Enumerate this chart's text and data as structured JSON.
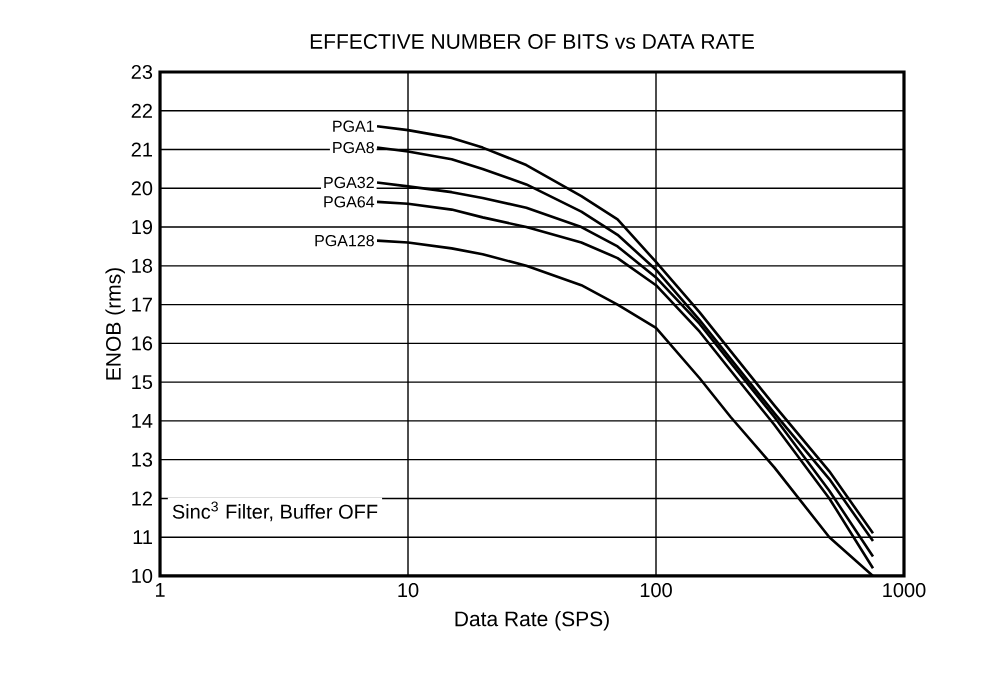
{
  "chart_data": {
    "type": "line",
    "title": "EFFECTIVE NUMBER OF BITS vs DATA RATE",
    "xlabel": "Data Rate (SPS)",
    "ylabel": "ENOB (rms)",
    "log": "x",
    "xlim": [
      1,
      1000
    ],
    "xticks": [
      1,
      10,
      100,
      1000
    ],
    "ylim": [
      10,
      23
    ],
    "yticks": [
      10,
      11,
      12,
      13,
      14,
      15,
      16,
      17,
      18,
      19,
      20,
      21,
      22,
      23
    ],
    "grid": true,
    "legend": false,
    "marker": "none",
    "line_style": "solid",
    "x": [
      7.5,
      10,
      15,
      20,
      30,
      50,
      70,
      100,
      150,
      200,
      300,
      500,
      750
    ],
    "series": [
      {
        "name": "PGA1",
        "color": "#000000",
        "values": [
          21.6,
          21.5,
          21.3,
          21.05,
          20.6,
          19.8,
          19.2,
          18.1,
          16.8,
          15.8,
          14.4,
          12.7,
          11.1
        ]
      },
      {
        "name": "PGA8",
        "color": "#000000",
        "values": [
          21.05,
          20.95,
          20.75,
          20.5,
          20.1,
          19.4,
          18.8,
          17.9,
          16.6,
          15.6,
          14.2,
          12.5,
          10.9
        ]
      },
      {
        "name": "PGA32",
        "color": "#000000",
        "values": [
          20.15,
          20.05,
          19.9,
          19.75,
          19.5,
          19.0,
          18.5,
          17.7,
          16.5,
          15.5,
          14.1,
          12.2,
          10.5
        ]
      },
      {
        "name": "PGA64",
        "color": "#000000",
        "values": [
          19.65,
          19.6,
          19.45,
          19.25,
          19.0,
          18.6,
          18.2,
          17.5,
          16.3,
          15.3,
          13.9,
          12.0,
          10.2
        ]
      },
      {
        "name": "PGA128",
        "color": "#000000",
        "values": [
          18.65,
          18.6,
          18.45,
          18.3,
          18.0,
          17.5,
          17.0,
          16.4,
          15.1,
          14.1,
          12.8,
          11.0,
          10.0
        ]
      }
    ],
    "annotations": [
      "Sinc$^{3}$ Filter, Buffer OFF"
    ]
  }
}
